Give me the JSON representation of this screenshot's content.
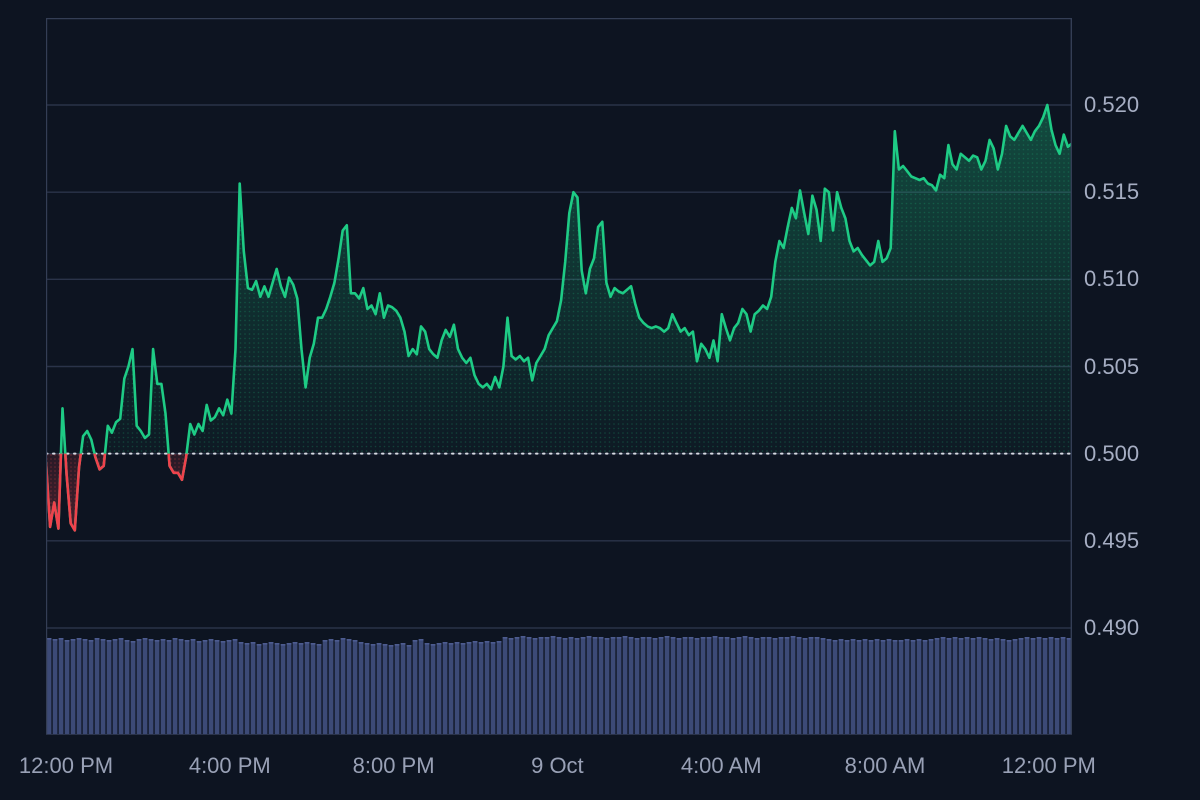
{
  "chart_data": {
    "type": "area",
    "title": "",
    "grid": true,
    "legend": false,
    "x_axis": {
      "labels": [
        "12:00 PM",
        "4:00 PM",
        "8:00 PM",
        "9 Oct",
        "4:00 AM",
        "8:00 AM",
        "12:00 PM"
      ]
    },
    "y_axis": {
      "tick_labels": [
        "0.520",
        "0.515",
        "0.510",
        "0.505",
        "0.500",
        "0.495",
        "0.490"
      ],
      "tick_step": 0.005,
      "top_tick": 0.52,
      "bottom_tick": 0.49
    },
    "baseline": 0.5,
    "last_price": 0.5178,
    "max_price": 0.52,
    "min_price": 0.4956,
    "series": [
      {
        "name": "price",
        "values": [
          0.4995,
          0.4958,
          0.4972,
          0.4957,
          0.5026,
          0.4988,
          0.496,
          0.4956,
          0.4992,
          0.501,
          0.5013,
          0.5008,
          0.4998,
          0.4991,
          0.4993,
          0.5016,
          0.5012,
          0.5018,
          0.502,
          0.5043,
          0.505,
          0.506,
          0.5016,
          0.5013,
          0.5009,
          0.5011,
          0.506,
          0.504,
          0.504,
          0.5023,
          0.4993,
          0.4989,
          0.4989,
          0.4985,
          0.4998,
          0.5017,
          0.5011,
          0.5017,
          0.5013,
          0.5028,
          0.5019,
          0.5021,
          0.5026,
          0.5022,
          0.5031,
          0.5023,
          0.506,
          0.5155,
          0.5116,
          0.5095,
          0.5094,
          0.5099,
          0.509,
          0.5096,
          0.509,
          0.5098,
          0.5106,
          0.5096,
          0.509,
          0.5101,
          0.5097,
          0.5089,
          0.506,
          0.5038,
          0.5055,
          0.5063,
          0.5078,
          0.5078,
          0.5083,
          0.509,
          0.5098,
          0.5112,
          0.5128,
          0.5131,
          0.5092,
          0.5092,
          0.5089,
          0.5095,
          0.5083,
          0.5085,
          0.508,
          0.5092,
          0.5078,
          0.5085,
          0.5084,
          0.5082,
          0.5078,
          0.507,
          0.5056,
          0.506,
          0.5057,
          0.5073,
          0.507,
          0.506,
          0.5057,
          0.5055,
          0.5065,
          0.5071,
          0.5067,
          0.5074,
          0.506,
          0.5055,
          0.5052,
          0.5055,
          0.5045,
          0.504,
          0.5038,
          0.504,
          0.5037,
          0.5044,
          0.5038,
          0.505,
          0.5078,
          0.5056,
          0.5054,
          0.5056,
          0.5053,
          0.5055,
          0.5042,
          0.5052,
          0.5056,
          0.506,
          0.5068,
          0.5072,
          0.5076,
          0.5088,
          0.511,
          0.5138,
          0.515,
          0.5147,
          0.5105,
          0.5092,
          0.5106,
          0.5112,
          0.513,
          0.5133,
          0.5098,
          0.509,
          0.5095,
          0.5093,
          0.5092,
          0.5094,
          0.5096,
          0.5086,
          0.5078,
          0.5075,
          0.5073,
          0.5072,
          0.5073,
          0.5072,
          0.507,
          0.5072,
          0.508,
          0.5075,
          0.507,
          0.5072,
          0.5068,
          0.507,
          0.5053,
          0.5063,
          0.506,
          0.5055,
          0.5065,
          0.5053,
          0.508,
          0.5072,
          0.5065,
          0.5072,
          0.5075,
          0.5083,
          0.508,
          0.507,
          0.508,
          0.5082,
          0.5085,
          0.5083,
          0.509,
          0.511,
          0.5122,
          0.5118,
          0.513,
          0.5141,
          0.5135,
          0.5151,
          0.5138,
          0.5126,
          0.5148,
          0.514,
          0.5122,
          0.5152,
          0.515,
          0.5128,
          0.515,
          0.5141,
          0.5135,
          0.5122,
          0.5116,
          0.5118,
          0.5114,
          0.5111,
          0.5108,
          0.511,
          0.5122,
          0.511,
          0.5112,
          0.5118,
          0.5185,
          0.5163,
          0.5165,
          0.5162,
          0.5159,
          0.5158,
          0.5157,
          0.5158,
          0.5155,
          0.5154,
          0.5151,
          0.516,
          0.5158,
          0.5177,
          0.5166,
          0.5163,
          0.5172,
          0.517,
          0.5168,
          0.5171,
          0.517,
          0.5163,
          0.5168,
          0.518,
          0.5175,
          0.5163,
          0.5172,
          0.5188,
          0.5182,
          0.518,
          0.5184,
          0.5188,
          0.5184,
          0.518,
          0.5185,
          0.5188,
          0.5193,
          0.52,
          0.5186,
          0.5177,
          0.5172,
          0.5183,
          0.5176,
          0.5178
        ]
      }
    ],
    "volume_series": {
      "name": "volume",
      "values_relative": [
        0.97,
        0.96,
        0.97,
        0.95,
        0.96,
        0.97,
        0.96,
        0.95,
        0.97,
        0.96,
        0.95,
        0.96,
        0.97,
        0.95,
        0.94,
        0.96,
        0.97,
        0.96,
        0.95,
        0.96,
        0.95,
        0.97,
        0.96,
        0.95,
        0.96,
        0.94,
        0.95,
        0.96,
        0.95,
        0.94,
        0.95,
        0.96,
        0.93,
        0.92,
        0.93,
        0.91,
        0.92,
        0.93,
        0.92,
        0.91,
        0.92,
        0.93,
        0.92,
        0.93,
        0.92,
        0.91,
        0.95,
        0.96,
        0.95,
        0.97,
        0.96,
        0.95,
        0.93,
        0.92,
        0.91,
        0.92,
        0.91,
        0.9,
        0.91,
        0.92,
        0.9,
        0.95,
        0.96,
        0.92,
        0.91,
        0.92,
        0.93,
        0.92,
        0.93,
        0.92,
        0.93,
        0.94,
        0.93,
        0.94,
        0.93,
        0.94,
        0.98,
        0.97,
        0.98,
        0.99,
        0.98,
        0.97,
        0.98,
        0.98,
        0.99,
        0.98,
        0.97,
        0.98,
        0.97,
        0.98,
        0.99,
        0.98,
        0.98,
        0.97,
        0.98,
        0.98,
        0.99,
        0.98,
        0.97,
        0.98,
        0.98,
        0.97,
        0.98,
        0.99,
        0.98,
        0.97,
        0.98,
        0.98,
        0.97,
        0.98,
        0.98,
        0.99,
        0.98,
        0.98,
        0.97,
        0.98,
        0.99,
        0.98,
        0.97,
        0.98,
        0.98,
        0.97,
        0.98,
        0.98,
        0.99,
        0.98,
        0.97,
        0.98,
        0.98,
        0.97,
        0.96,
        0.95,
        0.96,
        0.95,
        0.96,
        0.95,
        0.96,
        0.95,
        0.96,
        0.95,
        0.96,
        0.95,
        0.95,
        0.96,
        0.95,
        0.96,
        0.95,
        0.96,
        0.97,
        0.98,
        0.97,
        0.98,
        0.97,
        0.98,
        0.97,
        0.98,
        0.97,
        0.96,
        0.97,
        0.96,
        0.95,
        0.96,
        0.97,
        0.98,
        0.97,
        0.98,
        0.97,
        0.98,
        0.97,
        0.98,
        0.97
      ]
    },
    "colors": {
      "background": "#0d1421",
      "line_up": "#1ecb85",
      "line_down": "#ef424c",
      "fill_up": "#1ecb85",
      "fill_down": "#ef424c",
      "baseline_dots": "#e9ecf3",
      "grid": "#2a3349",
      "border": "#343e55",
      "volume_bar": "#3c4a76",
      "volume_bar_cap": "#4d5c90",
      "y_label": "#a6aec3",
      "x_label": "#99a1b6"
    }
  }
}
